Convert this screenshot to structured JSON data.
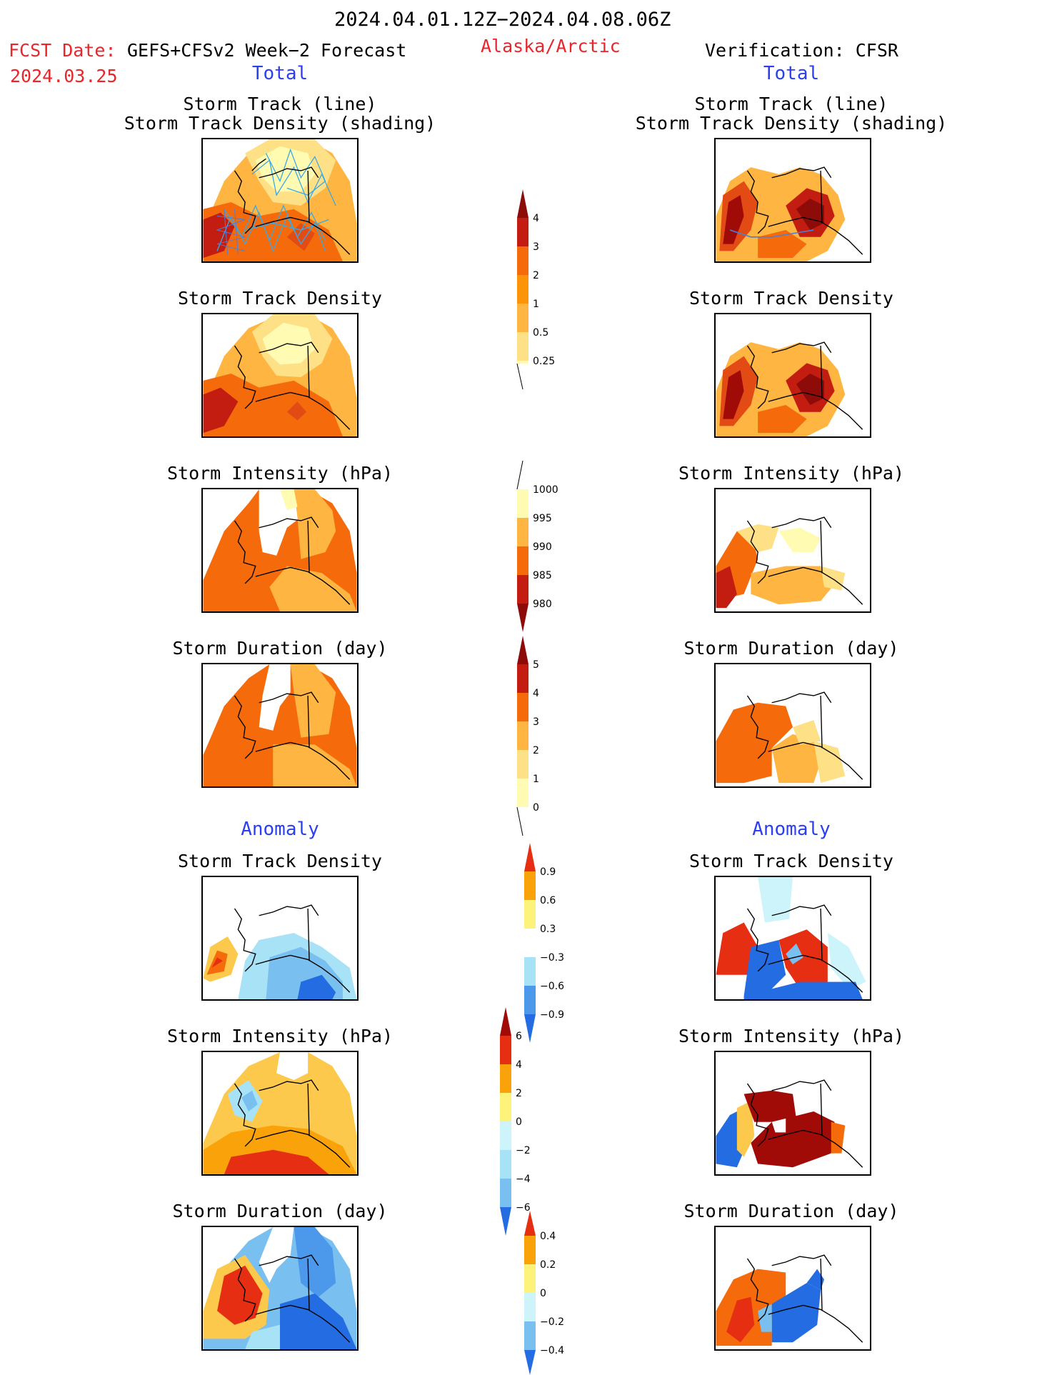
{
  "header": {
    "period": "2024.04.01.12Z−2024.04.08.06Z",
    "fcst_label": "FCST Date:",
    "fcst_model": "GEFS+CFSv2 Week−2 Forecast",
    "fcst_date": "2024.03.25",
    "region": "Alaska/Arctic",
    "verification": "Verification: CFSR"
  },
  "sections": {
    "total": "Total",
    "anomaly": "Anomaly"
  },
  "titles": {
    "track_line": "Storm Track (line)",
    "track_shading": "Storm Track Density (shading)",
    "density": "Storm Track Density",
    "intensity": "Storm Intensity (hPa)",
    "duration": "Storm Duration (day)"
  },
  "colors": {
    "seq": [
      "#fffbb2",
      "#fee087",
      "#feb541",
      "#fc9409",
      "#f56b0c",
      "#e24b13",
      "#c21d10",
      "#8d0b08"
    ],
    "div_warm": [
      "#fef37a",
      "#fcc94c",
      "#f9a20a",
      "#f56b0c",
      "#e52e12",
      "#a00b08"
    ],
    "div_cool": [
      "#cdf3fb",
      "#a8e2f7",
      "#79bff0",
      "#4c98ea",
      "#246ce2",
      "#1953c8"
    ],
    "track_line": "#36a9e6",
    "track_line_obs": "#4c7fd8"
  },
  "colorbars": [
    {
      "labels": [
        "4",
        "3",
        "2",
        "1",
        "0.5",
        "0.25"
      ]
    },
    {
      "labels": [
        "1000",
        "995",
        "990",
        "985",
        "980"
      ]
    },
    {
      "labels": [
        "5",
        "4",
        "3",
        "2",
        "1",
        "0"
      ]
    },
    {
      "labels": [
        "0.9",
        "0.6",
        "0.3",
        "−0.3",
        "−0.6",
        "−0.9"
      ]
    },
    {
      "labels": [
        "6",
        "4",
        "2",
        "0",
        "−2",
        "−4",
        "−6"
      ]
    },
    {
      "labels": [
        "0.4",
        "0.2",
        "0",
        "−0.2",
        "−0.4"
      ]
    }
  ]
}
